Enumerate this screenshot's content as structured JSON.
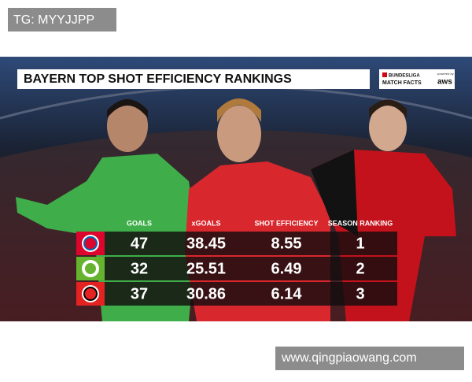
{
  "watermark_top": "TG: MYYJJPP",
  "watermark_bottom": "www.qingpiaowang.com",
  "header": {
    "title": "BAYERN TOP SHOT EFFICIENCY RANKINGS",
    "logo": {
      "line1": "BUNDESLIGA",
      "line2": "MATCH FACTS",
      "powered": "powered by",
      "brand": "aws"
    }
  },
  "table": {
    "columns": [
      "GOALS",
      "xGOALS",
      "SHOT EFFICIENCY",
      "SEASON RANKING"
    ],
    "rows": [
      [
        47,
        38.45,
        8.55,
        1
      ],
      [
        32,
        25.51,
        6.49,
        2
      ],
      [
        37,
        30.86,
        6.14,
        3
      ]
    ]
  }
}
